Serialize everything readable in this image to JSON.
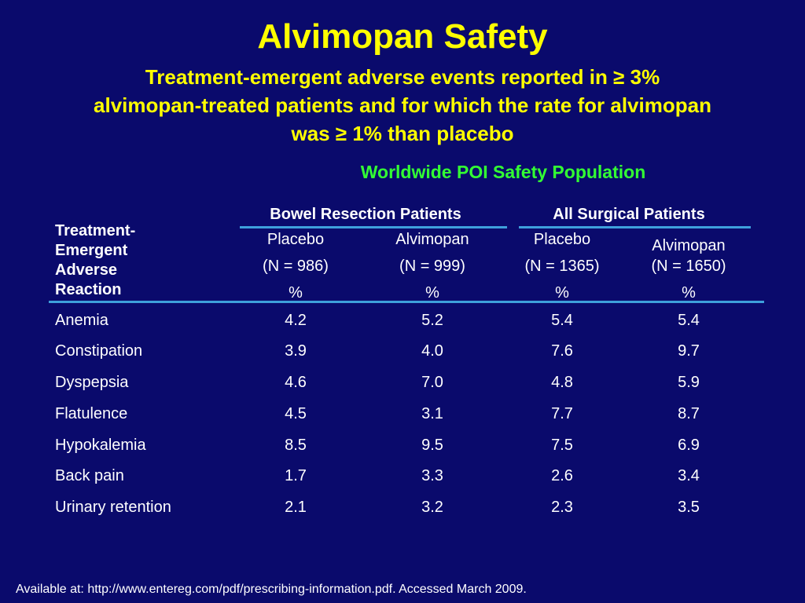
{
  "title": "Alvimopan Safety",
  "subtitle_lines": [
    "Treatment-emergent adverse events reported in ≥ 3%",
    "alvimopan-treated patients and for which the rate for alvimopan",
    "was ≥ 1% than placebo"
  ],
  "population": "Worldwide POI Safety Population",
  "groups": [
    "Bowel Resection Patients",
    "All Surgical Patients"
  ],
  "row_header": [
    "Treatment-",
    "Emergent",
    "Adverse",
    "Reaction"
  ],
  "columns": [
    {
      "arm": "Placebo",
      "n": "(N = 986)",
      "unit": "%"
    },
    {
      "arm": "Alvimopan",
      "n": "(N = 999)",
      "unit": "%"
    },
    {
      "arm": "Placebo",
      "n": "(N = 1365)",
      "unit": "%"
    },
    {
      "arm": "Alvimopan",
      "n": "(N = 1650)",
      "unit": "%"
    }
  ],
  "rows": [
    {
      "reaction": "Anemia",
      "values": [
        "4.2",
        "5.2",
        "5.4",
        "5.4"
      ]
    },
    {
      "reaction": "Constipation",
      "values": [
        "3.9",
        "4.0",
        "7.6",
        "9.7"
      ]
    },
    {
      "reaction": "Dyspepsia",
      "values": [
        "4.6",
        "7.0",
        "4.8",
        "5.9"
      ]
    },
    {
      "reaction": "Flatulence",
      "values": [
        "4.5",
        "3.1",
        "7.7",
        "8.7"
      ]
    },
    {
      "reaction": "Hypokalemia",
      "values": [
        "8.5",
        "9.5",
        "7.5",
        "6.9"
      ]
    },
    {
      "reaction": "Back pain",
      "values": [
        "1.7",
        "3.3",
        "2.6",
        "3.4"
      ]
    },
    {
      "reaction": "Urinary retention",
      "values": [
        "2.1",
        "3.2",
        "2.3",
        "3.5"
      ]
    }
  ],
  "footer": "Available at: http://www.entereg.com/pdf/prescribing-information.pdf. Accessed March 2009.",
  "colors": {
    "background": "#0a0a6c",
    "title": "#ffff00",
    "population": "#33ff33",
    "rule": "#3ea0dc",
    "text": "#ffffff"
  }
}
